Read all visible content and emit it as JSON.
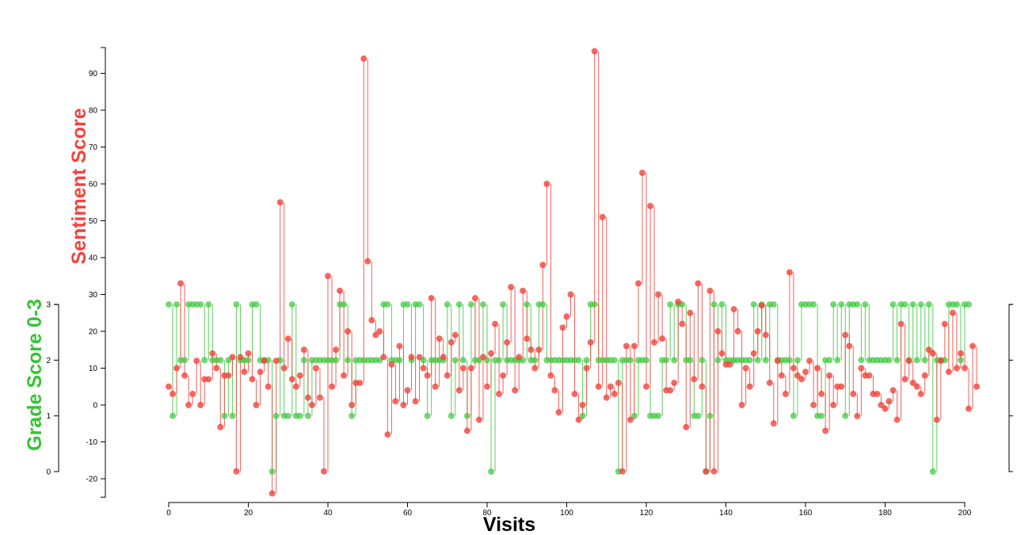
{
  "chart_data": {
    "type": "scatter",
    "title": "",
    "xlabel": "Visits",
    "ylabel_left": "Grade Score 0-3",
    "ylabel_inner": "Sentiment Score",
    "xlim": [
      0,
      200
    ],
    "x_ticks": [
      0,
      20,
      40,
      60,
      80,
      100,
      120,
      140,
      160,
      180,
      200
    ],
    "sentiment_ylim": [
      -25,
      97
    ],
    "sentiment_ticks": [
      -20,
      -10,
      0,
      10,
      20,
      30,
      40,
      50,
      60,
      70,
      80,
      90
    ],
    "grade_ylim": [
      0,
      3
    ],
    "grade_ticks": [
      0,
      1,
      2,
      3
    ],
    "grid": false,
    "legend": "none",
    "colors": {
      "grade": "#3ec83e",
      "sentiment": "#f0443c",
      "grade_title": "#36c236",
      "sentiment_title": "#f0443c"
    },
    "series": [
      {
        "name": "Grade Score 0-3",
        "values": [
          3,
          1,
          3,
          2,
          2,
          3,
          3,
          3,
          3,
          2,
          3,
          2,
          2,
          2,
          1,
          2,
          1,
          3,
          2,
          2,
          2,
          3,
          3,
          2,
          2,
          2,
          0,
          1,
          2,
          1,
          1,
          3,
          1,
          1,
          2,
          1,
          2,
          2,
          2,
          2,
          2,
          2,
          2,
          3,
          3,
          2,
          1,
          2,
          2,
          2,
          2,
          2,
          2,
          2,
          3,
          3,
          2,
          2,
          2,
          3,
          3,
          2,
          3,
          3,
          2,
          1,
          2,
          2,
          2,
          2,
          3,
          1,
          2,
          3,
          2,
          1,
          3,
          2,
          2,
          3,
          2,
          0,
          2,
          2,
          3,
          2,
          2,
          2,
          2,
          2,
          3,
          2,
          2,
          3,
          3,
          2,
          2,
          2,
          2,
          2,
          2,
          2,
          2,
          2,
          1,
          2,
          3,
          3,
          2,
          2,
          2,
          2,
          2,
          0,
          2,
          2,
          2,
          1,
          2,
          2,
          2,
          1,
          1,
          1,
          2,
          2,
          3,
          2,
          3,
          3,
          2,
          2,
          1,
          1,
          2,
          0,
          1,
          3,
          2,
          3,
          2,
          2,
          2,
          2,
          2,
          2,
          2,
          3,
          2,
          3,
          2,
          3,
          3,
          2,
          2,
          2,
          2,
          1,
          2,
          3,
          3,
          3,
          3,
          1,
          1,
          2,
          2,
          3,
          2,
          3,
          1,
          3,
          3,
          3,
          2,
          3,
          2,
          2,
          2,
          2,
          2,
          2,
          3,
          2,
          3,
          3,
          2,
          3,
          2,
          3,
          2,
          3,
          0,
          2,
          2,
          2,
          3,
          3,
          3,
          2,
          3,
          3
        ]
      },
      {
        "name": "Sentiment Score",
        "values": [
          5,
          3,
          10,
          33,
          8,
          0,
          3,
          12,
          0,
          7,
          7,
          14,
          10,
          -6,
          8,
          8,
          13,
          -18,
          13,
          9,
          14,
          7,
          0,
          9,
          12,
          5,
          -24,
          12,
          55,
          10,
          18,
          7,
          5,
          8,
          15,
          2,
          0,
          10,
          2,
          -18,
          35,
          5,
          15,
          31,
          8,
          20,
          0,
          6,
          6,
          94,
          39,
          23,
          19,
          20,
          13,
          -8,
          11,
          1,
          16,
          0,
          4,
          13,
          1,
          13,
          10,
          8,
          29,
          5,
          18,
          13,
          8,
          17,
          19,
          4,
          10,
          -7,
          10,
          29,
          -4,
          13,
          5,
          14,
          22,
          3,
          8,
          17,
          32,
          4,
          13,
          31,
          18,
          15,
          10,
          15,
          38,
          60,
          8,
          4,
          -2,
          21,
          24,
          30,
          3,
          -4,
          0,
          10,
          17,
          96,
          5,
          51,
          2,
          5,
          3,
          6,
          -18,
          16,
          -4,
          16,
          33,
          63,
          5,
          54,
          17,
          30,
          18,
          4,
          4,
          6,
          28,
          22,
          -6,
          25,
          7,
          33,
          5,
          -18,
          31,
          -18,
          20,
          14,
          11,
          11,
          26,
          20,
          0,
          10,
          5,
          14,
          20,
          27,
          19,
          6,
          -5,
          12,
          8,
          3,
          36,
          10,
          8,
          7,
          9,
          12,
          0,
          10,
          3,
          -7,
          8,
          0,
          5,
          5,
          19,
          16,
          3,
          -3,
          10,
          8,
          8,
          3,
          3,
          0,
          -1,
          1,
          4,
          -4,
          22,
          7,
          12,
          6,
          5,
          3,
          8,
          15,
          14,
          -4,
          12,
          22,
          9,
          25,
          10,
          14,
          10,
          -1,
          16,
          5
        ]
      }
    ]
  }
}
